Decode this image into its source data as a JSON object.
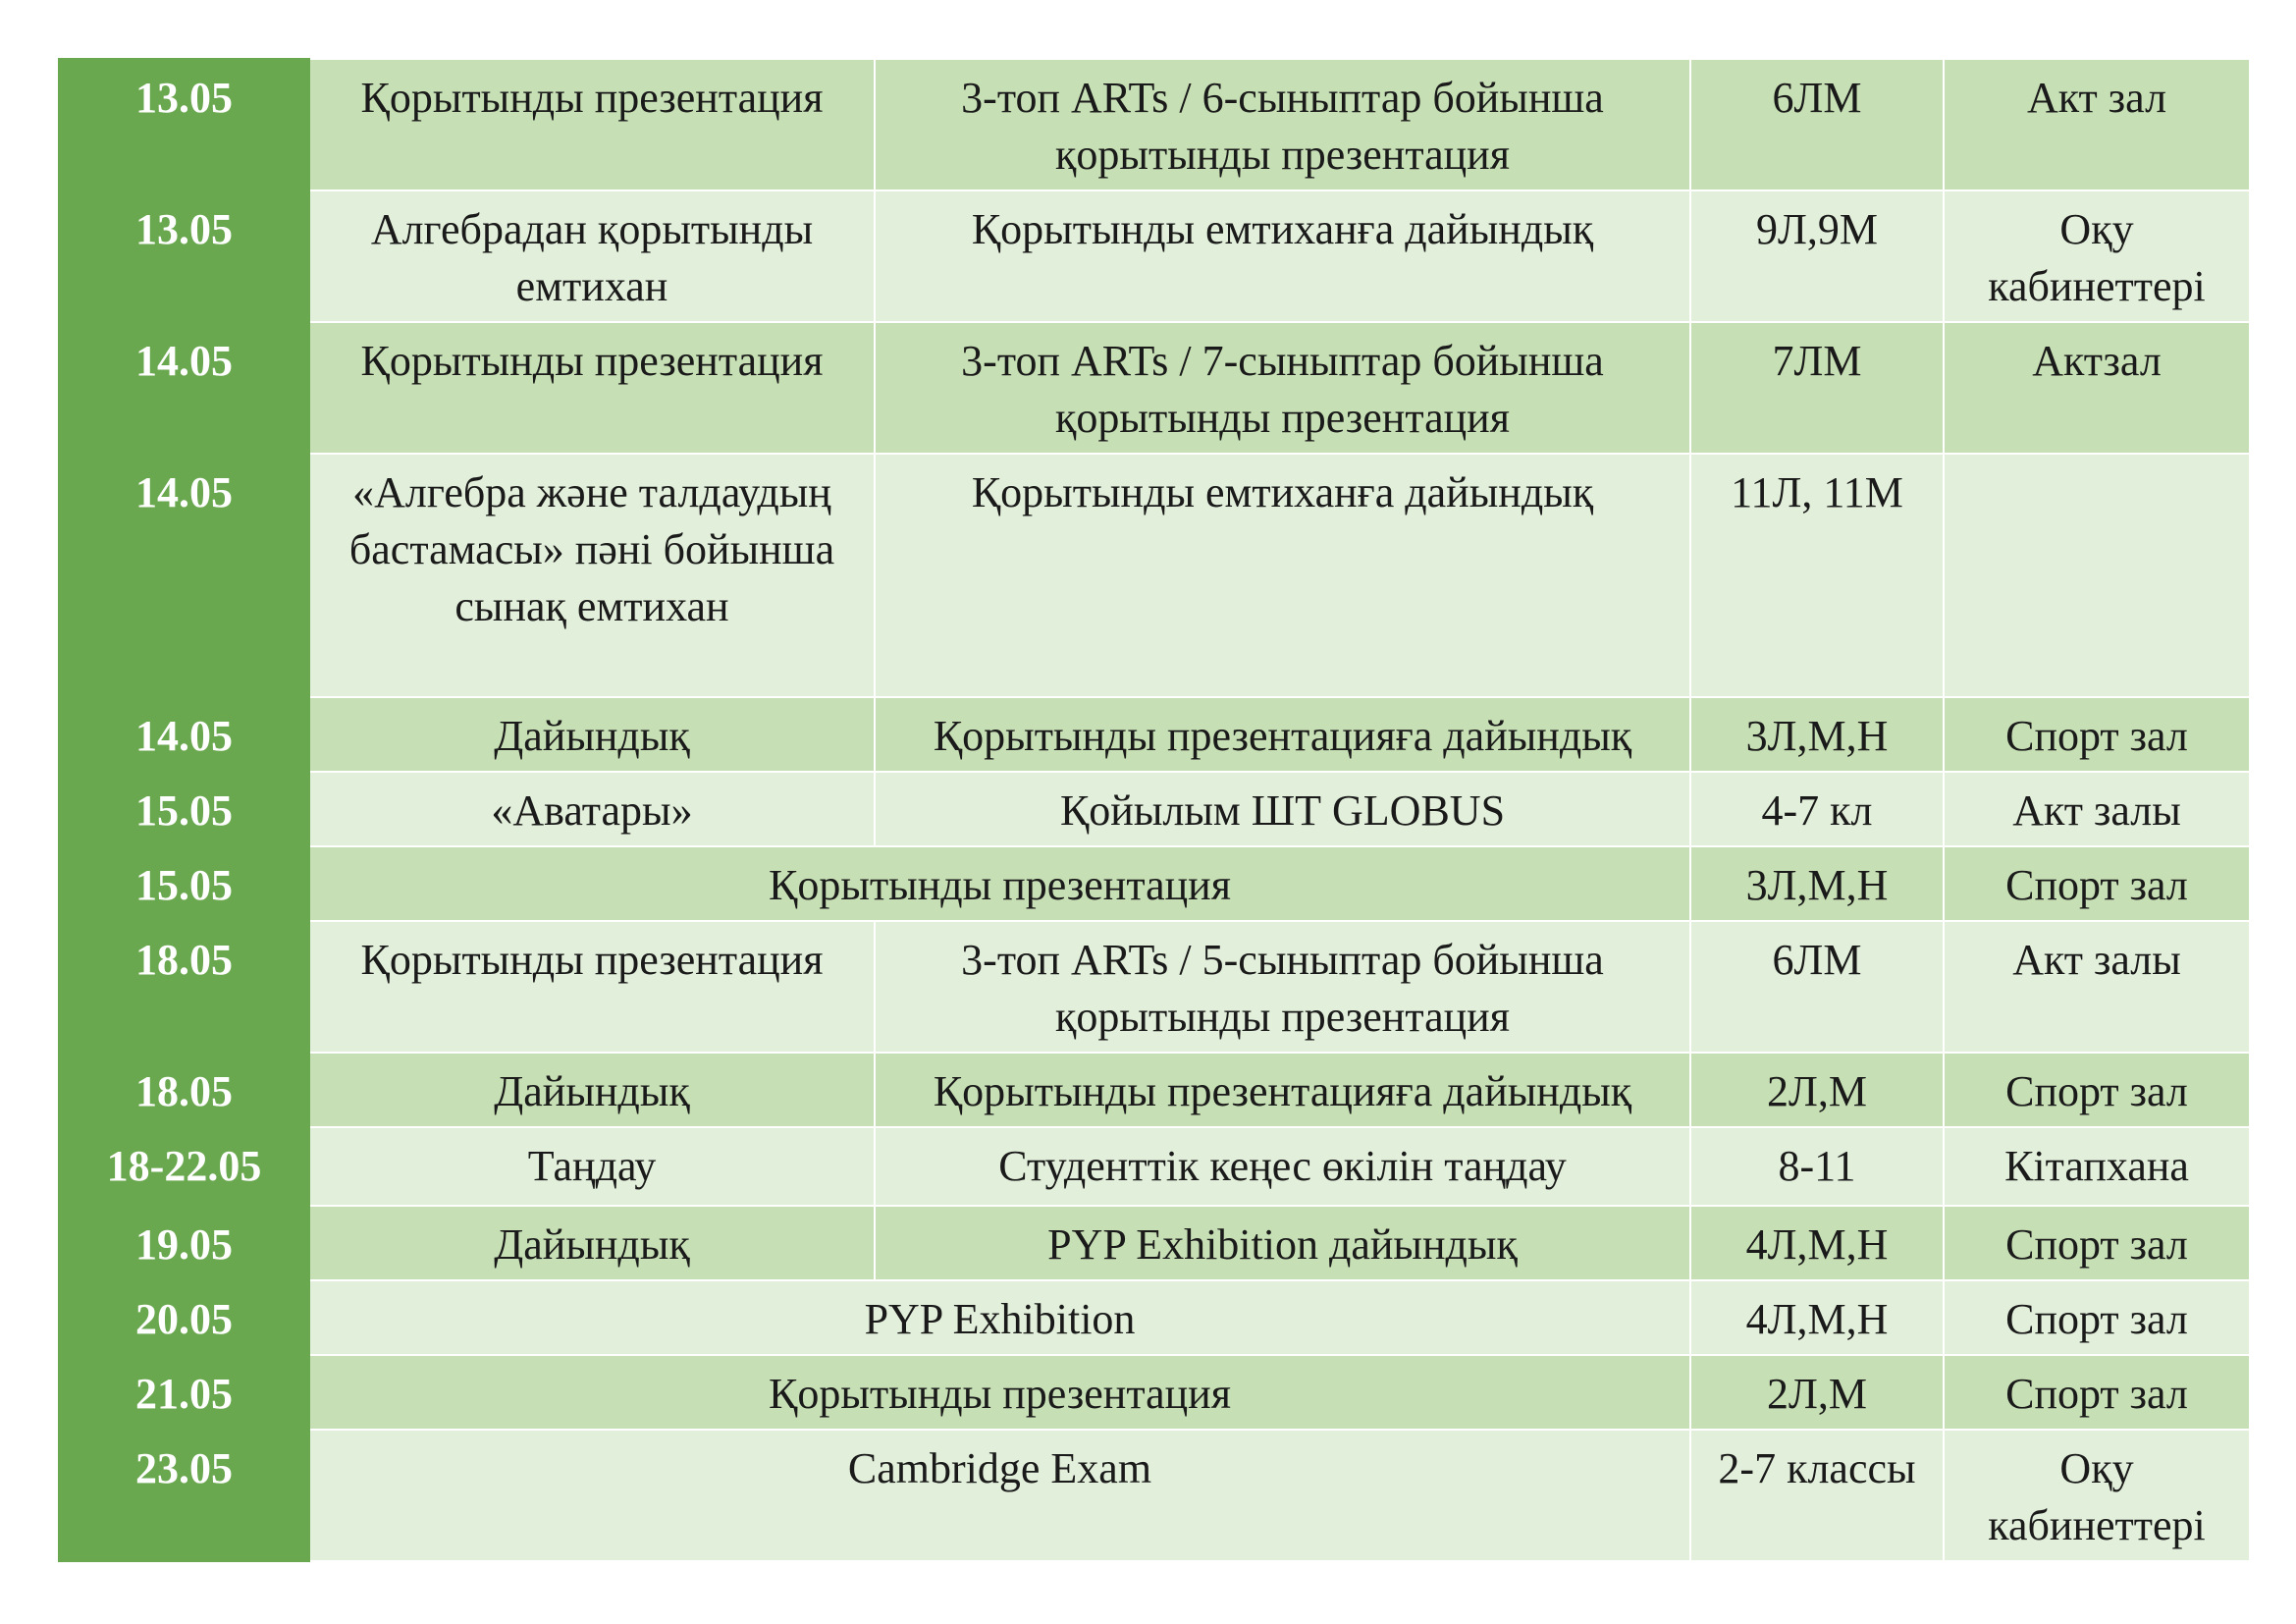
{
  "schedule": {
    "rows": [
      {
        "date": "13.05",
        "event": "Қорытынды презентация",
        "description": "3-топ ARTs / 6-сыныптар бойынша қорытынды презентация",
        "grades": "6ЛМ",
        "place": "Акт зал"
      },
      {
        "date": "13.05",
        "event": "Алгебрадан қорытынды емтихан",
        "description": "Қорытынды емтиханға дайындық",
        "grades": "9Л,9М",
        "place": "Оқу кабинеттері"
      },
      {
        "date": "14.05",
        "event": "Қорытынды презентация",
        "description": "3-топ ARTs / 7-сыныптар бойынша қорытынды презентация",
        "grades": "7ЛМ",
        "place": "Актзал"
      },
      {
        "date": "14.05",
        "event": "«Алгебра және талдаудың бастамасы» пәні бойынша сынақ емтихан",
        "description": "Қорытынды емтиханға дайындық",
        "grades": "11Л, 11М",
        "place": ""
      },
      {
        "date": "14.05",
        "event": "Дайындық",
        "description": "Қорытынды презентацияға дайындық",
        "grades": "3Л,М,Н",
        "place": "Спорт зал"
      },
      {
        "date": "15.05",
        "event": "«Аватары»",
        "description": "Қойылым  ШТ GLOBUS",
        "grades": "4-7 кл",
        "place": "Акт залы"
      },
      {
        "date": "15.05",
        "merged": "Қорытынды презентация",
        "grades": "3Л,М,Н",
        "place": "Спорт зал"
      },
      {
        "date": "18.05",
        "event": "Қорытынды презентация",
        "description": "3-топ ARTs / 5-сыныптар бойынша қорытынды презентация",
        "grades": "6ЛМ",
        "place": "Акт залы"
      },
      {
        "date": "18.05",
        "event": "Дайындық",
        "description": "Қорытынды презентацияға дайындық",
        "grades": "2Л,М",
        "place": "Спорт зал"
      },
      {
        "date": "18-22.05",
        "event": "Таңдау",
        "description": "Студенттік кеңес өкілін таңдау",
        "grades": "8-11",
        "place": "Кітапхана"
      },
      {
        "date": "19.05",
        "event": "Дайындық",
        "description": "PYP Exhibition дайындық",
        "grades": "4Л,М,Н",
        "place": "Спорт зал"
      },
      {
        "date": "20.05",
        "merged": "PYP Exhibition",
        "grades": "4Л,М,Н",
        "place": "Спорт зал"
      },
      {
        "date": "21.05",
        "merged": "Қорытынды презентация",
        "grades": "2Л,М",
        "place": "Спорт зал"
      },
      {
        "date": "23.05",
        "merged": "Cambridge Exam",
        "grades": "2-7 классы",
        "place": "Оқу кабинеттері"
      }
    ]
  },
  "colors": {
    "date_column": "#6aa84f",
    "row_dark": "#c6dfb4",
    "row_light": "#e2efda",
    "date_text": "#ffffff",
    "cell_text": "#1a1a1a"
  }
}
